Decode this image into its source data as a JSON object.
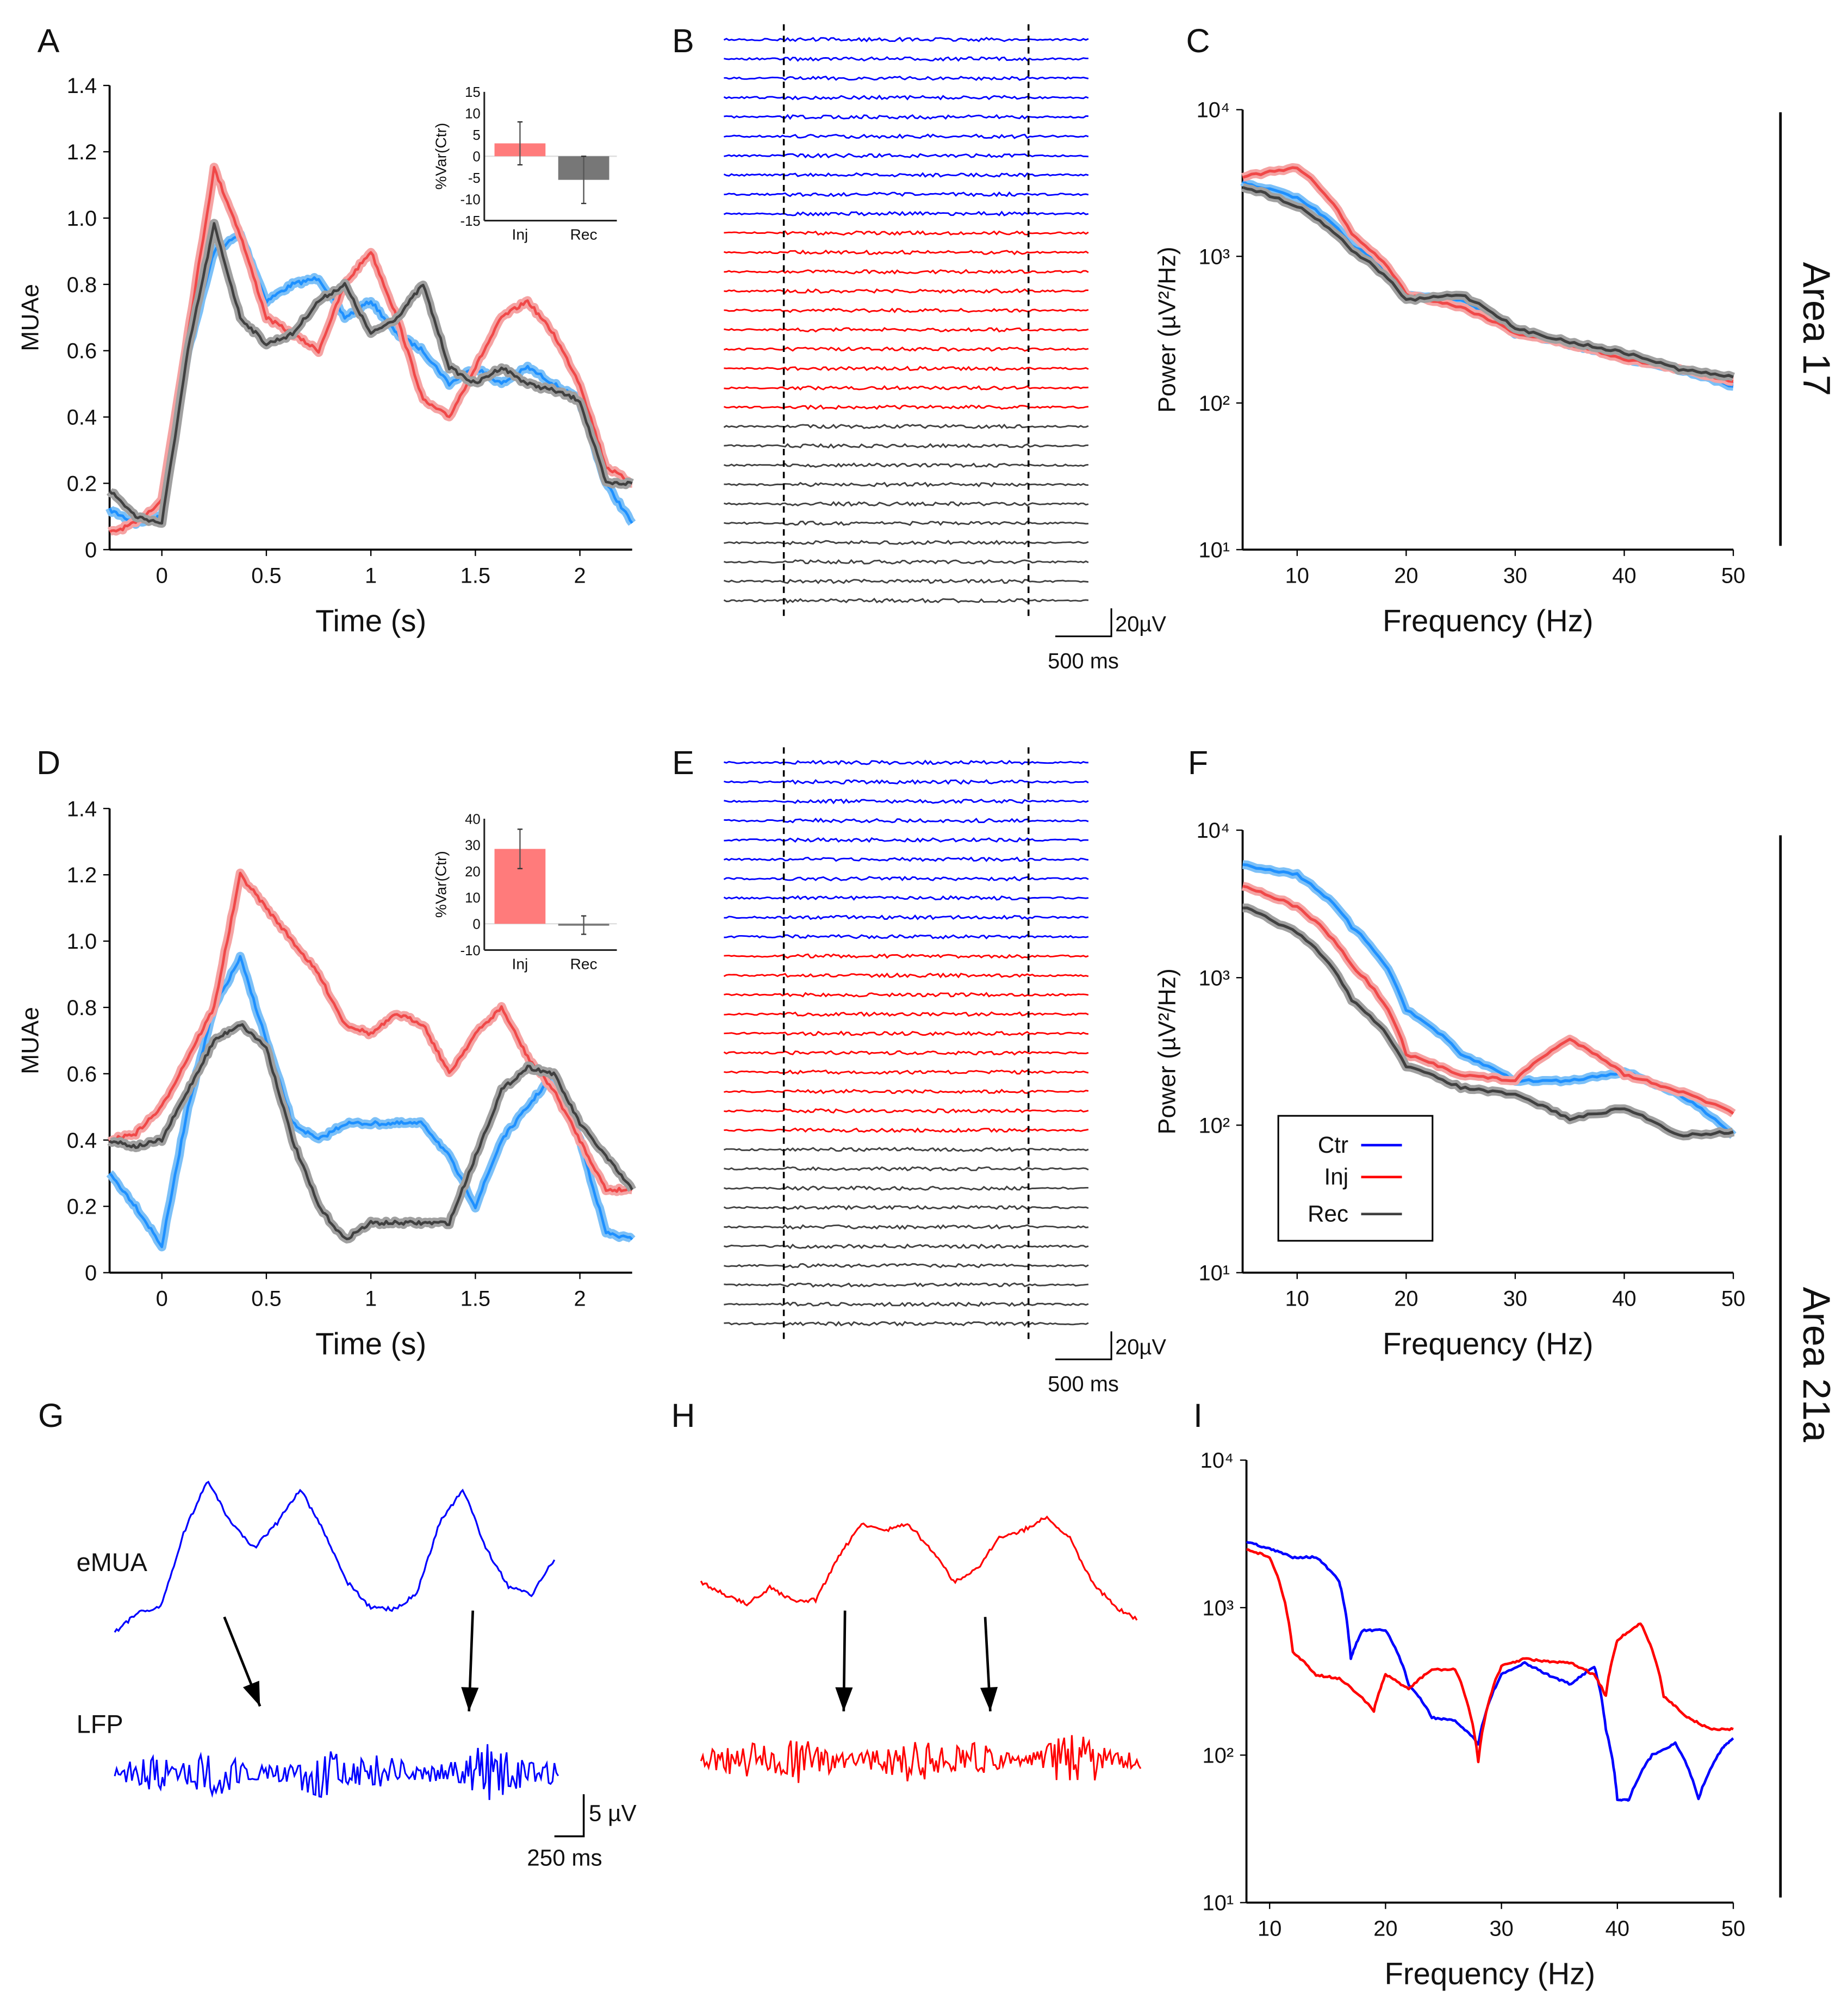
{
  "panel_letters": [
    "A",
    "B",
    "C",
    "D",
    "E",
    "F",
    "G",
    "H",
    "I"
  ],
  "area_labels": {
    "top": "Area 17",
    "bottom": "Area 21a"
  },
  "colors": {
    "ctr": "#1e90ff",
    "inj": "#f04848",
    "rec": "#404040",
    "trace_blue": "#0000ff",
    "trace_red": "#ff0000",
    "trace_black": "#000000"
  },
  "chart_data": [
    {
      "id": "A",
      "type": "line",
      "xlabel": "Time (s)",
      "ylabel": "MUAe",
      "xlim": [
        -0.25,
        2.25
      ],
      "ylim": [
        0,
        1.4
      ],
      "xticks": [
        0,
        0.5,
        1,
        1.5,
        2
      ],
      "xtick_labels": [
        "0",
        "0.5",
        "1",
        "1.5",
        "2"
      ],
      "yticks": [
        0,
        0.2,
        0.4,
        0.6,
        0.8,
        1.0,
        1.2,
        1.4
      ],
      "ytick_labels": [
        "0",
        "0.2",
        "0.4",
        "0.6",
        "0.8",
        "1.0",
        "1.2",
        "1.4"
      ],
      "x": [
        -0.25,
        -0.125,
        0,
        0.125,
        0.25,
        0.375,
        0.5,
        0.625,
        0.75,
        0.875,
        1,
        1.125,
        1.25,
        1.375,
        1.5,
        1.625,
        1.75,
        1.875,
        2,
        2.125,
        2.25
      ],
      "series": [
        {
          "name": "Ctr",
          "values": [
            0.12,
            0.08,
            0.1,
            0.6,
            0.9,
            0.95,
            0.75,
            0.8,
            0.82,
            0.7,
            0.75,
            0.65,
            0.6,
            0.5,
            0.55,
            0.5,
            0.55,
            0.5,
            0.45,
            0.2,
            0.08
          ]
        },
        {
          "name": "Inj",
          "values": [
            0.05,
            0.08,
            0.15,
            0.65,
            1.15,
            0.95,
            0.7,
            0.65,
            0.6,
            0.8,
            0.9,
            0.7,
            0.45,
            0.4,
            0.55,
            0.7,
            0.75,
            0.65,
            0.5,
            0.25,
            0.2
          ]
        },
        {
          "name": "Rec",
          "values": [
            0.18,
            0.1,
            0.08,
            0.6,
            0.98,
            0.7,
            0.62,
            0.65,
            0.75,
            0.8,
            0.65,
            0.7,
            0.8,
            0.55,
            0.5,
            0.55,
            0.5,
            0.48,
            0.45,
            0.2,
            0.2
          ]
        }
      ],
      "inset": {
        "type": "bar",
        "ylabel": "%Var(Ctr)",
        "ylim": [
          -15,
          15
        ],
        "yticks": [
          15,
          10,
          5,
          0,
          -5,
          -10,
          -15
        ],
        "ytick_labels": [
          "15",
          "10",
          "5",
          "0",
          "-5",
          "-10",
          "-15"
        ],
        "categories": [
          "Inj",
          "Rec"
        ],
        "values": [
          3,
          -5.5
        ],
        "err_low": [
          -2,
          -11
        ],
        "err_high": [
          8,
          0
        ]
      }
    },
    {
      "id": "B",
      "type": "traces",
      "groups": [
        {
          "name": "Ctr",
          "count": 10
        },
        {
          "name": "Inj",
          "count": 10
        },
        {
          "name": "Rec",
          "count": 10
        }
      ],
      "markers": [
        "stimulus on",
        "stimulus off"
      ],
      "scale_amp": "20µV",
      "scale_time": "500 ms"
    },
    {
      "id": "C",
      "type": "line",
      "xlabel": "Frequency (Hz)",
      "ylabel": "Power (µV²/Hz)",
      "yscale": "log",
      "xlim": [
        5,
        50
      ],
      "ylim": [
        10,
        10000
      ],
      "xticks": [
        10,
        20,
        30,
        40,
        50
      ],
      "xtick_labels": [
        "10",
        "20",
        "30",
        "40",
        "50"
      ],
      "yticks": [
        10,
        100,
        1000,
        10000
      ],
      "ytick_labels": [
        "10¹",
        "10²",
        "10³",
        "10⁴"
      ],
      "x": [
        5,
        10,
        15,
        20,
        25,
        30,
        35,
        40,
        45,
        50
      ],
      "series": [
        {
          "name": "Ctr",
          "values": [
            3200,
            2500,
            1200,
            550,
            500,
            300,
            250,
            200,
            170,
            130
          ]
        },
        {
          "name": "Inj",
          "values": [
            3500,
            4000,
            1400,
            550,
            450,
            300,
            250,
            200,
            170,
            140
          ]
        },
        {
          "name": "Rec",
          "values": [
            3000,
            2200,
            1100,
            500,
            550,
            320,
            260,
            220,
            170,
            150
          ]
        }
      ]
    },
    {
      "id": "D",
      "type": "line",
      "xlabel": "Time (s)",
      "ylabel": "MUAe",
      "xlim": [
        -0.25,
        2.25
      ],
      "ylim": [
        0,
        1.4
      ],
      "xticks": [
        0,
        0.5,
        1,
        1.5,
        2
      ],
      "xtick_labels": [
        "0",
        "0.5",
        "1",
        "1.5",
        "2"
      ],
      "yticks": [
        0,
        0.2,
        0.4,
        0.6,
        0.8,
        1.0,
        1.2,
        1.4
      ],
      "ytick_labels": [
        "0",
        "0.2",
        "0.4",
        "0.6",
        "0.8",
        "1.0",
        "1.2",
        "1.4"
      ],
      "x": [
        -0.25,
        -0.125,
        0,
        0.125,
        0.25,
        0.375,
        0.5,
        0.625,
        0.75,
        0.875,
        1,
        1.125,
        1.25,
        1.375,
        1.5,
        1.625,
        1.75,
        1.875,
        2,
        2.125,
        2.25
      ],
      "series": [
        {
          "name": "Ctr",
          "values": [
            0.3,
            0.2,
            0.08,
            0.5,
            0.8,
            0.95,
            0.7,
            0.45,
            0.4,
            0.45,
            0.45,
            0.45,
            0.45,
            0.35,
            0.2,
            0.4,
            0.5,
            0.6,
            0.4,
            0.12,
            0.1
          ]
        },
        {
          "name": "Inj",
          "values": [
            0.4,
            0.42,
            0.5,
            0.65,
            0.8,
            1.2,
            1.1,
            1.0,
            0.9,
            0.75,
            0.72,
            0.78,
            0.75,
            0.6,
            0.72,
            0.8,
            0.65,
            0.55,
            0.4,
            0.25,
            0.25
          ]
        },
        {
          "name": "Rec",
          "values": [
            0.4,
            0.38,
            0.4,
            0.55,
            0.7,
            0.75,
            0.68,
            0.4,
            0.2,
            0.1,
            0.15,
            0.15,
            0.15,
            0.15,
            0.35,
            0.55,
            0.62,
            0.6,
            0.45,
            0.35,
            0.25
          ]
        }
      ],
      "inset": {
        "type": "bar",
        "ylabel": "%Var(Ctr)",
        "ylim": [
          -10,
          40
        ],
        "yticks": [
          40,
          30,
          20,
          10,
          0,
          -10
        ],
        "ytick_labels": [
          "40",
          "30",
          "20",
          "10",
          "0",
          "-10"
        ],
        "categories": [
          "Inj",
          "Rec"
        ],
        "values": [
          28.5,
          -0.5
        ],
        "err_low": [
          21,
          -4
        ],
        "err_high": [
          36,
          3
        ]
      }
    },
    {
      "id": "E",
      "type": "traces",
      "groups": [
        {
          "name": "Ctr",
          "count": 10
        },
        {
          "name": "Inj",
          "count": 10
        },
        {
          "name": "Rec",
          "count": 10
        }
      ],
      "markers": [
        "stimulus on",
        "stimulus off"
      ],
      "scale_amp": "20µV",
      "scale_time": "500 ms"
    },
    {
      "id": "F",
      "type": "line",
      "xlabel": "Frequency (Hz)",
      "ylabel": "Power (µV²/Hz)",
      "yscale": "log",
      "xlim": [
        5,
        50
      ],
      "ylim": [
        10,
        10000
      ],
      "xticks": [
        10,
        20,
        30,
        40,
        50
      ],
      "xtick_labels": [
        "10",
        "20",
        "30",
        "40",
        "50"
      ],
      "yticks": [
        10,
        100,
        1000,
        10000
      ],
      "ytick_labels": [
        "10¹",
        "10²",
        "10³",
        "10⁴"
      ],
      "x": [
        5,
        10,
        15,
        20,
        25,
        30,
        35,
        40,
        45,
        50
      ],
      "series": [
        {
          "name": "Ctr",
          "values": [
            5800,
            5000,
            2200,
            600,
            300,
            200,
            200,
            230,
            160,
            85
          ]
        },
        {
          "name": "Inj",
          "values": [
            4200,
            3000,
            1200,
            300,
            220,
            200,
            380,
            220,
            170,
            120
          ]
        },
        {
          "name": "Rec",
          "values": [
            3000,
            2000,
            700,
            250,
            180,
            160,
            110,
            130,
            85,
            90
          ]
        }
      ],
      "legend": {
        "placement": "bottom-left",
        "entries": [
          "Ctr",
          "Inj",
          "Rec"
        ]
      }
    },
    {
      "id": "G",
      "type": "traces",
      "labels": [
        "eMUA",
        "LFP"
      ],
      "scale_amp": "5 µV",
      "scale_time": "250 ms",
      "emua_values_uV": [
        0,
        2.3,
        3,
        12,
        18,
        13,
        10,
        13,
        17,
        12,
        6,
        3,
        2.7,
        4.5,
        13,
        17,
        10,
        5.3,
        4.5,
        9
      ]
    },
    {
      "id": "H",
      "type": "traces",
      "emua_values_uV": [
        4.5,
        3,
        1.8,
        3.8,
        2.3,
        2.3,
        7.6,
        11.4,
        10.6,
        11.4,
        8.3,
        4.5,
        6,
        9.8,
        10.6,
        12.1,
        9.8,
        4.5,
        1.5,
        0
      ]
    },
    {
      "id": "I",
      "type": "line",
      "xlabel": "Frequency (Hz)",
      "yscale": "log",
      "xlim": [
        8,
        50
      ],
      "ylim": [
        10,
        10000
      ],
      "xticks": [
        10,
        20,
        30,
        40,
        50
      ],
      "xtick_labels": [
        "10",
        "20",
        "30",
        "40",
        "50"
      ],
      "yticks": [
        10,
        100,
        1000,
        10000
      ],
      "ytick_labels": [
        "10¹",
        "10²",
        "10³",
        "10⁴"
      ],
      "series": [
        {
          "name": "Ctr",
          "x": [
            8,
            10,
            12,
            14,
            16,
            17,
            18,
            20,
            22,
            24,
            26,
            28,
            30,
            32,
            34,
            36,
            38,
            39,
            40,
            41,
            43,
            45,
            47,
            49,
            50
          ],
          "values": [
            2800,
            2500,
            2200,
            2200,
            1500,
            450,
            700,
            700,
            300,
            180,
            170,
            120,
            350,
            420,
            350,
            300,
            400,
            150,
            50,
            50,
            100,
            120,
            50,
            110,
            130
          ]
        },
        {
          "name": "Inj",
          "x": [
            8,
            10,
            12,
            14,
            16,
            19,
            20,
            22,
            24,
            26,
            28,
            30,
            32,
            34,
            36,
            38,
            39,
            40,
            42,
            44,
            46,
            48,
            50
          ],
          "values": [
            2500,
            2200,
            500,
            350,
            330,
            200,
            350,
            280,
            380,
            380,
            90,
            400,
            450,
            430,
            420,
            350,
            250,
            600,
            780,
            250,
            180,
            150,
            150
          ]
        }
      ]
    }
  ]
}
